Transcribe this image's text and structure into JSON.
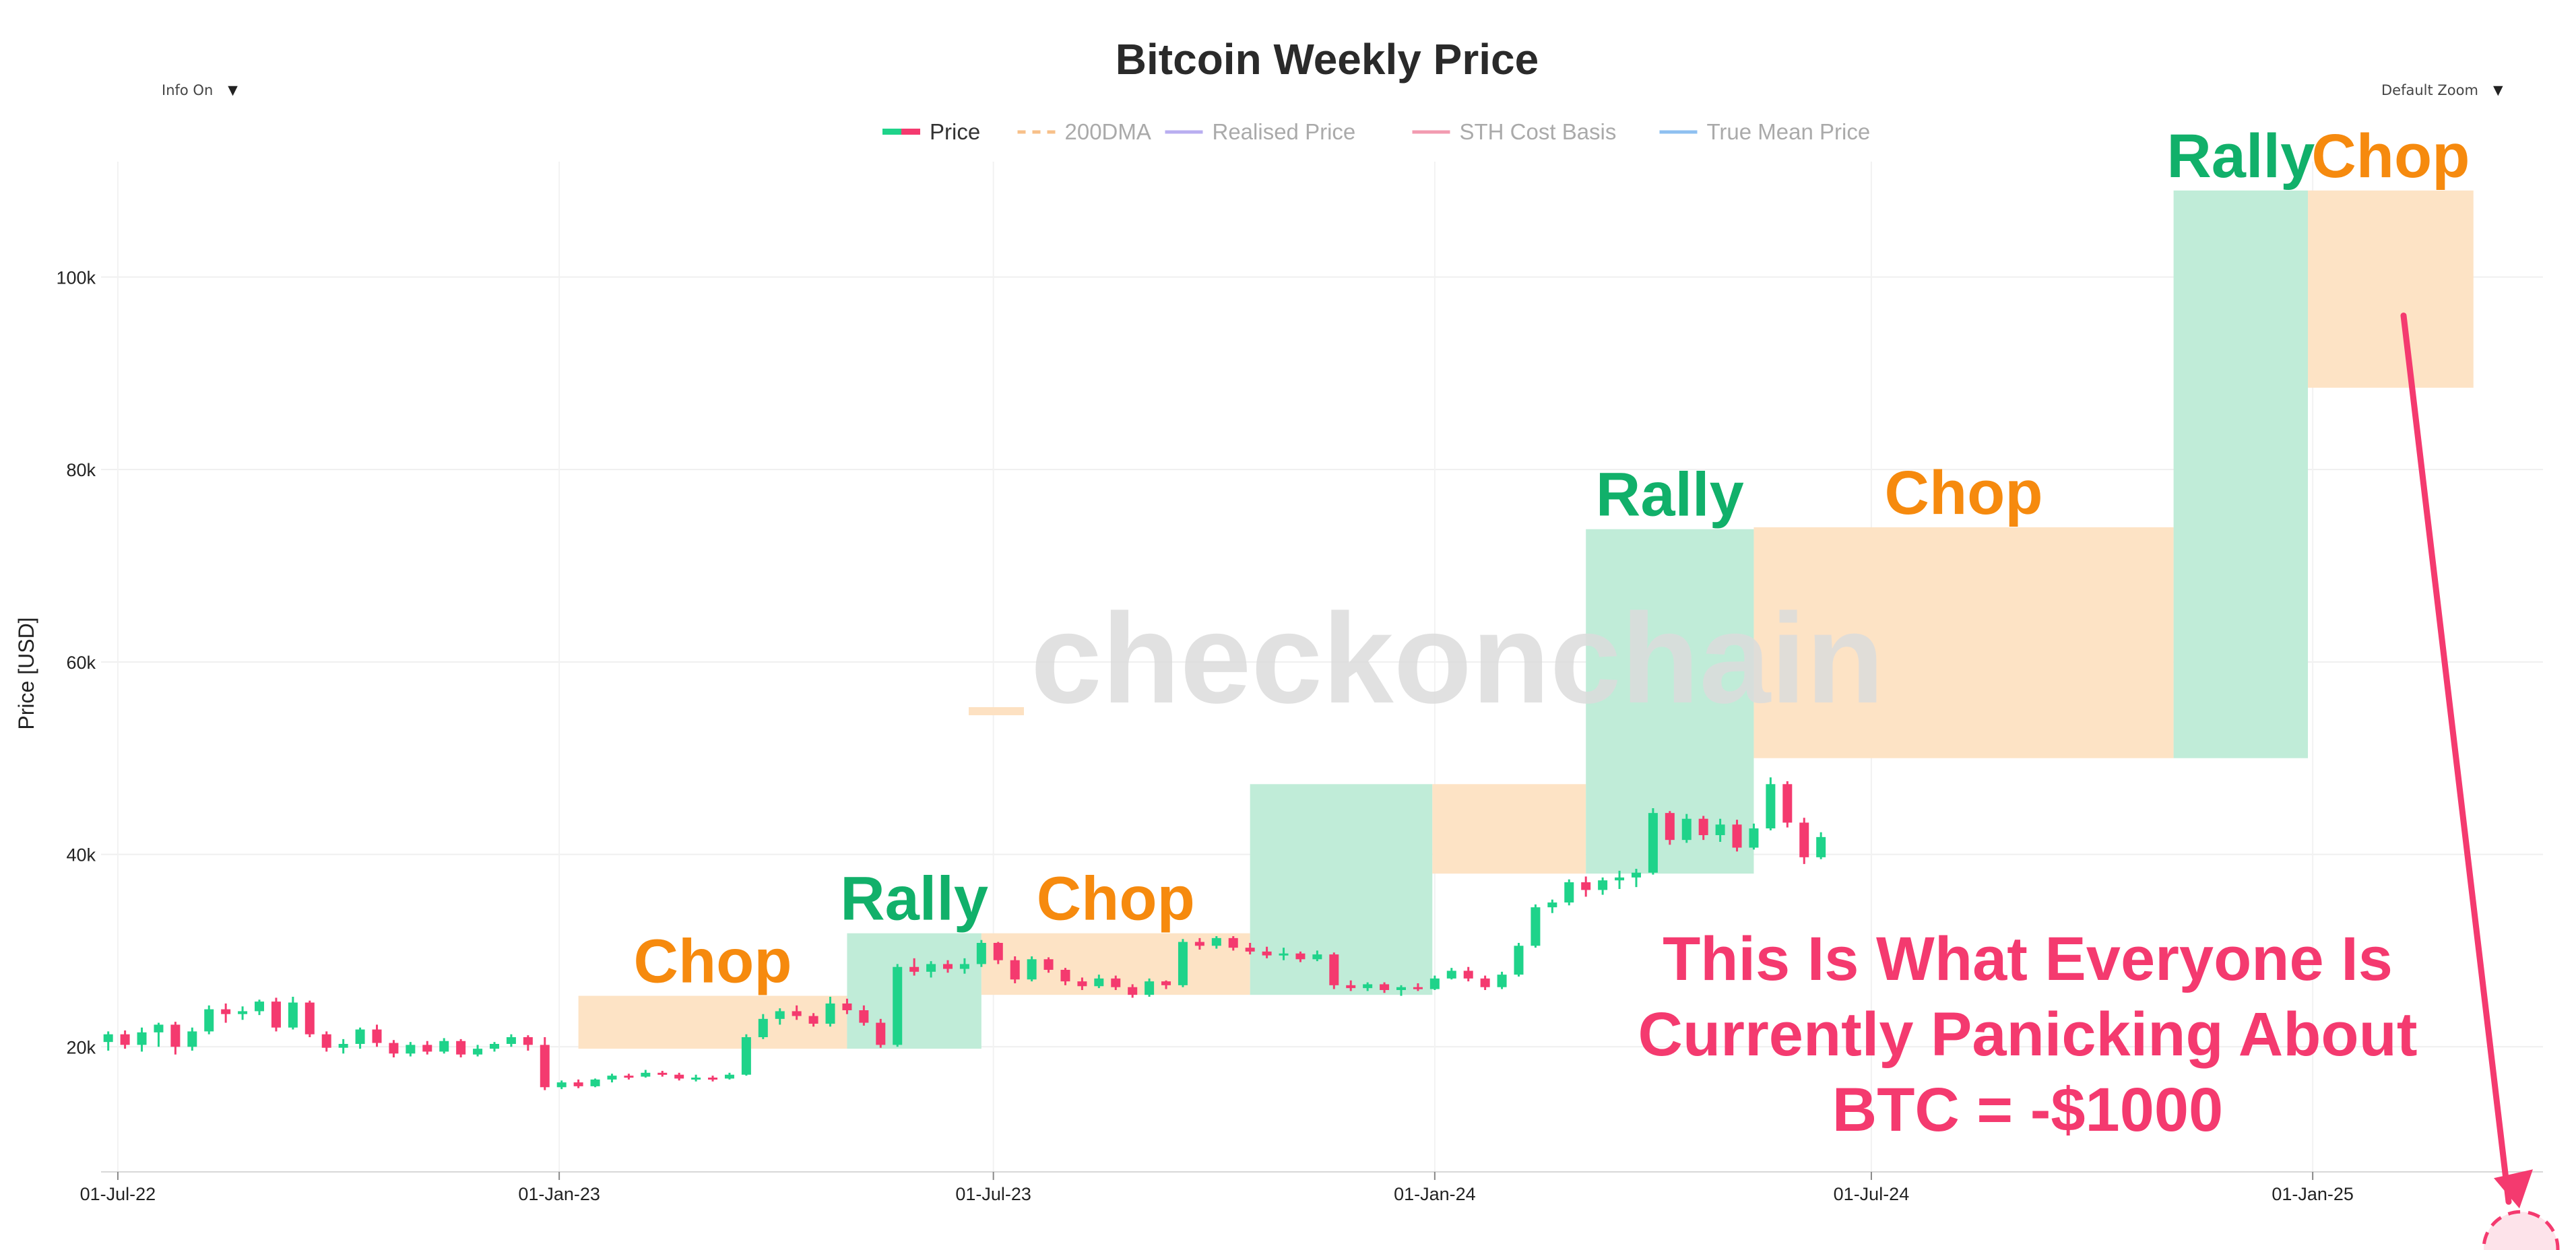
{
  "controls": {
    "info_toggle": "Info On",
    "zoom_select": "Default Zoom"
  },
  "watermark": "checkonchain",
  "callout": {
    "lines": [
      "This Is What Everyone Is",
      "Currently Panicking About",
      "BTC = -$1000"
    ],
    "target_price": -1000,
    "color": "#f43a6f"
  },
  "colors": {
    "up": "#1fd38a",
    "down": "#f43a6f",
    "rally_fill": "#bdebd6",
    "chop_fill": "#fde1c2",
    "rally_text": "#11b06a",
    "chop_text": "#f68a0e"
  },
  "chart_data": {
    "type": "candlestick",
    "title": "Bitcoin Weekly Price",
    "ylabel": "Price [USD]",
    "xlabel": "",
    "grid": true,
    "legend_position": "top-center",
    "ylim": [
      7000,
      112000
    ],
    "xlim": [
      "2022-06-24",
      "2025-04-07"
    ],
    "y_ticks": [
      {
        "v": 20000,
        "label": "20k"
      },
      {
        "v": 40000,
        "label": "40k"
      },
      {
        "v": 60000,
        "label": "60k"
      },
      {
        "v": 80000,
        "label": "80k"
      },
      {
        "v": 100000,
        "label": "100k"
      }
    ],
    "x_ticks": [
      {
        "date": "2022-07-01",
        "label": "01-Jul-22"
      },
      {
        "date": "2023-01-01",
        "label": "01-Jan-23"
      },
      {
        "date": "2023-07-01",
        "label": "01-Jul-23"
      },
      {
        "date": "2024-01-01",
        "label": "01-Jan-24"
      },
      {
        "date": "2024-07-01",
        "label": "01-Jul-24"
      },
      {
        "date": "2025-01-01",
        "label": "01-Jan-25"
      }
    ],
    "legend": [
      {
        "name": "Price",
        "style": "candle",
        "colors": [
          "#1fd38a",
          "#f43a6f"
        ],
        "active": true
      },
      {
        "name": "200DMA",
        "style": "dash",
        "color": "#f7c089",
        "active": false
      },
      {
        "name": "Realised Price",
        "style": "line",
        "color": "#b9aef0",
        "active": false
      },
      {
        "name": "STH Cost Basis",
        "style": "line",
        "color": "#f29bb0",
        "active": false
      },
      {
        "name": "True Mean Price",
        "style": "line",
        "color": "#8ec0f0",
        "active": false
      }
    ],
    "regimes": [
      {
        "label": "Chop",
        "kind": "chop",
        "start": "2023-01-09",
        "end": "2023-05-01",
        "low": 19800,
        "high": 25300
      },
      {
        "label": "Rally",
        "kind": "rally",
        "start": "2023-05-01",
        "end": "2023-06-26",
        "low": 19800,
        "high": 31800
      },
      {
        "label": "Chop",
        "kind": "chop",
        "start": "2023-06-26",
        "end": "2023-10-16",
        "low": 25400,
        "high": 31800
      },
      {
        "label": "",
        "kind": "rally",
        "start": "2023-10-16",
        "end": "2023-12-31",
        "low": 25400,
        "high": 47300
      },
      {
        "label": "",
        "kind": "chop",
        "start": "2023-12-31",
        "end": "2024-03-04",
        "low": 38000,
        "high": 47300
      },
      {
        "label": "Rally",
        "kind": "rally",
        "start": "2024-03-04",
        "end": "2024-05-13",
        "low": 38000,
        "high": 73800
      },
      {
        "label": "Chop",
        "kind": "chop",
        "start": "2024-05-13",
        "end": "2024-11-04",
        "low": 50000,
        "high": 74000
      },
      {
        "label": "Rally",
        "kind": "rally",
        "start": "2024-11-04",
        "end": "2024-12-30",
        "low": 50000,
        "high": 109000
      },
      {
        "label": "Chop",
        "kind": "chop",
        "start": "2024-12-30",
        "end": "2025-03-09",
        "low": 88500,
        "high": 109000
      }
    ],
    "candles": [
      {
        "date": "2022-06-27",
        "open": 20500,
        "high": 21600,
        "low": 19600,
        "close": 21300
      },
      {
        "date": "2022-07-04",
        "open": 21300,
        "high": 21700,
        "low": 19800,
        "close": 20200
      },
      {
        "date": "2022-07-11",
        "open": 20200,
        "high": 22000,
        "low": 19500,
        "close": 21500
      },
      {
        "date": "2022-07-18",
        "open": 21500,
        "high": 22500,
        "low": 20000,
        "close": 22300
      },
      {
        "date": "2022-07-25",
        "open": 22300,
        "high": 22600,
        "low": 19200,
        "close": 20000
      },
      {
        "date": "2022-08-01",
        "open": 20000,
        "high": 22000,
        "low": 19600,
        "close": 21600
      },
      {
        "date": "2022-08-08",
        "open": 21600,
        "high": 24300,
        "low": 21300,
        "close": 23900
      },
      {
        "date": "2022-08-15",
        "open": 23900,
        "high": 24500,
        "low": 22500,
        "close": 23400
      },
      {
        "date": "2022-08-22",
        "open": 23400,
        "high": 24200,
        "low": 22800,
        "close": 23700
      },
      {
        "date": "2022-08-29",
        "open": 23700,
        "high": 24900,
        "low": 23300,
        "close": 24700
      },
      {
        "date": "2022-09-05",
        "open": 24700,
        "high": 25100,
        "low": 21600,
        "close": 22000
      },
      {
        "date": "2022-09-12",
        "open": 22000,
        "high": 25200,
        "low": 21800,
        "close": 24600
      },
      {
        "date": "2022-09-19",
        "open": 24600,
        "high": 24800,
        "low": 21000,
        "close": 21300
      },
      {
        "date": "2022-09-26",
        "open": 21300,
        "high": 21600,
        "low": 19500,
        "close": 19900
      },
      {
        "date": "2022-10-03",
        "open": 19900,
        "high": 20800,
        "low": 19300,
        "close": 20300
      },
      {
        "date": "2022-10-10",
        "open": 20300,
        "high": 22000,
        "low": 19800,
        "close": 21800
      },
      {
        "date": "2022-10-17",
        "open": 21800,
        "high": 22300,
        "low": 20000,
        "close": 20400
      },
      {
        "date": "2022-10-24",
        "open": 20400,
        "high": 20700,
        "low": 18900,
        "close": 19300
      },
      {
        "date": "2022-10-31",
        "open": 19300,
        "high": 20500,
        "low": 19000,
        "close": 20200
      },
      {
        "date": "2022-11-07",
        "open": 20200,
        "high": 20600,
        "low": 19200,
        "close": 19500
      },
      {
        "date": "2022-11-14",
        "open": 19500,
        "high": 20900,
        "low": 19300,
        "close": 20600
      },
      {
        "date": "2022-11-21",
        "open": 20600,
        "high": 20800,
        "low": 18900,
        "close": 19200
      },
      {
        "date": "2022-11-28",
        "open": 19200,
        "high": 20200,
        "low": 19000,
        "close": 19800
      },
      {
        "date": "2022-12-05",
        "open": 19800,
        "high": 20500,
        "low": 19500,
        "close": 20300
      },
      {
        "date": "2022-12-12",
        "open": 20300,
        "high": 21300,
        "low": 20000,
        "close": 21000
      },
      {
        "date": "2022-12-19",
        "open": 21000,
        "high": 21200,
        "low": 19600,
        "close": 20200
      },
      {
        "date": "2022-12-26",
        "open": 20200,
        "high": 21000,
        "low": 15500,
        "close": 15800
      },
      {
        "date": "2023-01-02",
        "open": 15800,
        "high": 16500,
        "low": 15600,
        "close": 16300
      },
      {
        "date": "2023-01-09",
        "open": 16300,
        "high": 16600,
        "low": 15700,
        "close": 15900
      },
      {
        "date": "2023-01-16",
        "open": 15900,
        "high": 16700,
        "low": 15800,
        "close": 16600
      },
      {
        "date": "2023-01-23",
        "open": 16600,
        "high": 17200,
        "low": 16300,
        "close": 17000
      },
      {
        "date": "2023-01-30",
        "open": 17000,
        "high": 17200,
        "low": 16600,
        "close": 16900
      },
      {
        "date": "2023-02-06",
        "open": 16900,
        "high": 17600,
        "low": 16800,
        "close": 17300
      },
      {
        "date": "2023-02-13",
        "open": 17300,
        "high": 17500,
        "low": 16900,
        "close": 17100
      },
      {
        "date": "2023-02-20",
        "open": 17100,
        "high": 17300,
        "low": 16500,
        "close": 16700
      },
      {
        "date": "2023-02-27",
        "open": 16700,
        "high": 17100,
        "low": 16400,
        "close": 16800
      },
      {
        "date": "2023-03-06",
        "open": 16800,
        "high": 17000,
        "low": 16400,
        "close": 16700
      },
      {
        "date": "2023-03-13",
        "open": 16700,
        "high": 17300,
        "low": 16600,
        "close": 17100
      },
      {
        "date": "2023-03-20",
        "open": 17100,
        "high": 21300,
        "low": 17000,
        "close": 21000
      },
      {
        "date": "2023-03-27",
        "open": 21000,
        "high": 23400,
        "low": 20800,
        "close": 22900
      },
      {
        "date": "2023-04-03",
        "open": 22900,
        "high": 24000,
        "low": 22300,
        "close": 23700
      },
      {
        "date": "2023-04-10",
        "open": 23700,
        "high": 24300,
        "low": 22800,
        "close": 23200
      },
      {
        "date": "2023-04-17",
        "open": 23200,
        "high": 23500,
        "low": 22100,
        "close": 22400
      },
      {
        "date": "2023-04-24",
        "open": 22400,
        "high": 25200,
        "low": 22100,
        "close": 24500
      },
      {
        "date": "2023-05-01",
        "open": 24500,
        "high": 25000,
        "low": 23400,
        "close": 23800
      },
      {
        "date": "2023-05-08",
        "open": 23800,
        "high": 24300,
        "low": 22200,
        "close": 22500
      },
      {
        "date": "2023-05-15",
        "open": 22500,
        "high": 22900,
        "low": 19900,
        "close": 20200
      },
      {
        "date": "2023-05-22",
        "open": 20200,
        "high": 28600,
        "low": 20000,
        "close": 28300
      },
      {
        "date": "2023-05-29",
        "open": 28300,
        "high": 29200,
        "low": 27400,
        "close": 27800
      },
      {
        "date": "2023-06-05",
        "open": 27800,
        "high": 28900,
        "low": 27200,
        "close": 28600
      },
      {
        "date": "2023-06-12",
        "open": 28600,
        "high": 29000,
        "low": 27700,
        "close": 28100
      },
      {
        "date": "2023-06-19",
        "open": 28100,
        "high": 29200,
        "low": 27600,
        "close": 28600
      },
      {
        "date": "2023-06-26",
        "open": 28600,
        "high": 31100,
        "low": 28300,
        "close": 30800
      },
      {
        "date": "2023-07-03",
        "open": 30800,
        "high": 30900,
        "low": 28600,
        "close": 29000
      },
      {
        "date": "2023-07-10",
        "open": 29000,
        "high": 29400,
        "low": 26600,
        "close": 27000
      },
      {
        "date": "2023-07-17",
        "open": 27000,
        "high": 29400,
        "low": 26800,
        "close": 29100
      },
      {
        "date": "2023-07-24",
        "open": 29100,
        "high": 29300,
        "low": 27700,
        "close": 28000
      },
      {
        "date": "2023-07-31",
        "open": 28000,
        "high": 28200,
        "low": 26400,
        "close": 26800
      },
      {
        "date": "2023-08-07",
        "open": 26800,
        "high": 27200,
        "low": 25900,
        "close": 26300
      },
      {
        "date": "2023-08-14",
        "open": 26300,
        "high": 27500,
        "low": 26100,
        "close": 27100
      },
      {
        "date": "2023-08-21",
        "open": 27100,
        "high": 27400,
        "low": 25900,
        "close": 26200
      },
      {
        "date": "2023-08-28",
        "open": 26200,
        "high": 26500,
        "low": 25100,
        "close": 25400
      },
      {
        "date": "2023-09-04",
        "open": 25400,
        "high": 27100,
        "low": 25200,
        "close": 26800
      },
      {
        "date": "2023-09-11",
        "open": 26800,
        "high": 26900,
        "low": 26000,
        "close": 26400
      },
      {
        "date": "2023-09-18",
        "open": 26400,
        "high": 31200,
        "low": 26200,
        "close": 30900
      },
      {
        "date": "2023-09-25",
        "open": 30900,
        "high": 31300,
        "low": 30100,
        "close": 30500
      },
      {
        "date": "2023-10-02",
        "open": 30500,
        "high": 31500,
        "low": 30200,
        "close": 31300
      },
      {
        "date": "2023-10-09",
        "open": 31300,
        "high": 31500,
        "low": 30000,
        "close": 30300
      },
      {
        "date": "2023-10-16",
        "open": 30300,
        "high": 30800,
        "low": 29600,
        "close": 29900
      },
      {
        "date": "2023-10-23",
        "open": 29900,
        "high": 30400,
        "low": 29200,
        "close": 29500
      },
      {
        "date": "2023-10-30",
        "open": 29500,
        "high": 30300,
        "low": 29000,
        "close": 29700
      },
      {
        "date": "2023-11-06",
        "open": 29700,
        "high": 29900,
        "low": 28800,
        "close": 29100
      },
      {
        "date": "2023-11-13",
        "open": 29100,
        "high": 30000,
        "low": 28900,
        "close": 29600
      },
      {
        "date": "2023-11-20",
        "open": 29600,
        "high": 29800,
        "low": 26000,
        "close": 26400
      },
      {
        "date": "2023-11-27",
        "open": 26400,
        "high": 26900,
        "low": 25800,
        "close": 26100
      },
      {
        "date": "2023-12-04",
        "open": 26100,
        "high": 26700,
        "low": 25800,
        "close": 26500
      },
      {
        "date": "2023-12-11",
        "open": 26500,
        "high": 26700,
        "low": 25600,
        "close": 25900
      },
      {
        "date": "2023-12-18",
        "open": 25900,
        "high": 26400,
        "low": 25300,
        "close": 26200
      },
      {
        "date": "2023-12-25",
        "open": 26200,
        "high": 26600,
        "low": 25800,
        "close": 26000
      },
      {
        "date": "2024-01-01",
        "open": 26000,
        "high": 27400,
        "low": 25900,
        "close": 27100
      },
      {
        "date": "2024-01-08",
        "open": 27100,
        "high": 28200,
        "low": 27000,
        "close": 27900
      },
      {
        "date": "2024-01-15",
        "open": 27900,
        "high": 28300,
        "low": 26800,
        "close": 27100
      },
      {
        "date": "2024-01-22",
        "open": 27100,
        "high": 27400,
        "low": 25900,
        "close": 26200
      },
      {
        "date": "2024-01-29",
        "open": 26200,
        "high": 27800,
        "low": 26000,
        "close": 27500
      },
      {
        "date": "2024-02-05",
        "open": 27500,
        "high": 30800,
        "low": 27300,
        "close": 30500
      }
    ],
    "note_x_axis": "candle dates are positional; tick labels give the calendar",
    "candles_2": [
      {
        "date": "2024-02-12",
        "open": 30500,
        "high": 34800,
        "low": 30300,
        "close": 34500
      },
      {
        "date": "2024-02-19",
        "open": 34500,
        "high": 35300,
        "low": 33900,
        "close": 35000
      },
      {
        "date": "2024-02-26",
        "open": 35000,
        "high": 37400,
        "low": 34700,
        "close": 37100
      },
      {
        "date": "2024-03-04",
        "open": 37100,
        "high": 37700,
        "low": 35600,
        "close": 36300
      },
      {
        "date": "2024-03-11",
        "open": 36300,
        "high": 37600,
        "low": 35800,
        "close": 37300
      },
      {
        "date": "2024-03-18",
        "open": 37300,
        "high": 38300,
        "low": 36400,
        "close": 37600
      },
      {
        "date": "2024-03-25",
        "open": 37600,
        "high": 38500,
        "low": 36600,
        "close": 38100
      },
      {
        "date": "2024-04-01",
        "open": 38100,
        "high": 44800,
        "low": 37900,
        "close": 44300
      },
      {
        "date": "2024-04-08",
        "open": 44300,
        "high": 44500,
        "low": 41000,
        "close": 41500
      },
      {
        "date": "2024-04-15",
        "open": 41500,
        "high": 44200,
        "low": 41200,
        "close": 43700
      },
      {
        "date": "2024-04-22",
        "open": 43700,
        "high": 44000,
        "low": 41500,
        "close": 42000
      },
      {
        "date": "2024-04-29",
        "open": 42000,
        "high": 43700,
        "low": 41300,
        "close": 43100
      },
      {
        "date": "2024-05-06",
        "open": 43100,
        "high": 43600,
        "low": 40300,
        "close": 40700
      },
      {
        "date": "2024-05-13",
        "open": 40700,
        "high": 43200,
        "low": 40500,
        "close": 42700
      },
      {
        "date": "2024-05-20",
        "open": 42700,
        "high": 48000,
        "low": 42500,
        "close": 47300
      },
      {
        "date": "2024-05-27",
        "open": 47300,
        "high": 47600,
        "low": 42800,
        "close": 43300
      },
      {
        "date": "2024-06-03",
        "open": 43300,
        "high": 43800,
        "low": 39000,
        "close": 39700
      },
      {
        "date": "2024-06-10",
        "open": 39700,
        "high": 42300,
        "low": 39500,
        "close": 41800
      }
    ]
  }
}
